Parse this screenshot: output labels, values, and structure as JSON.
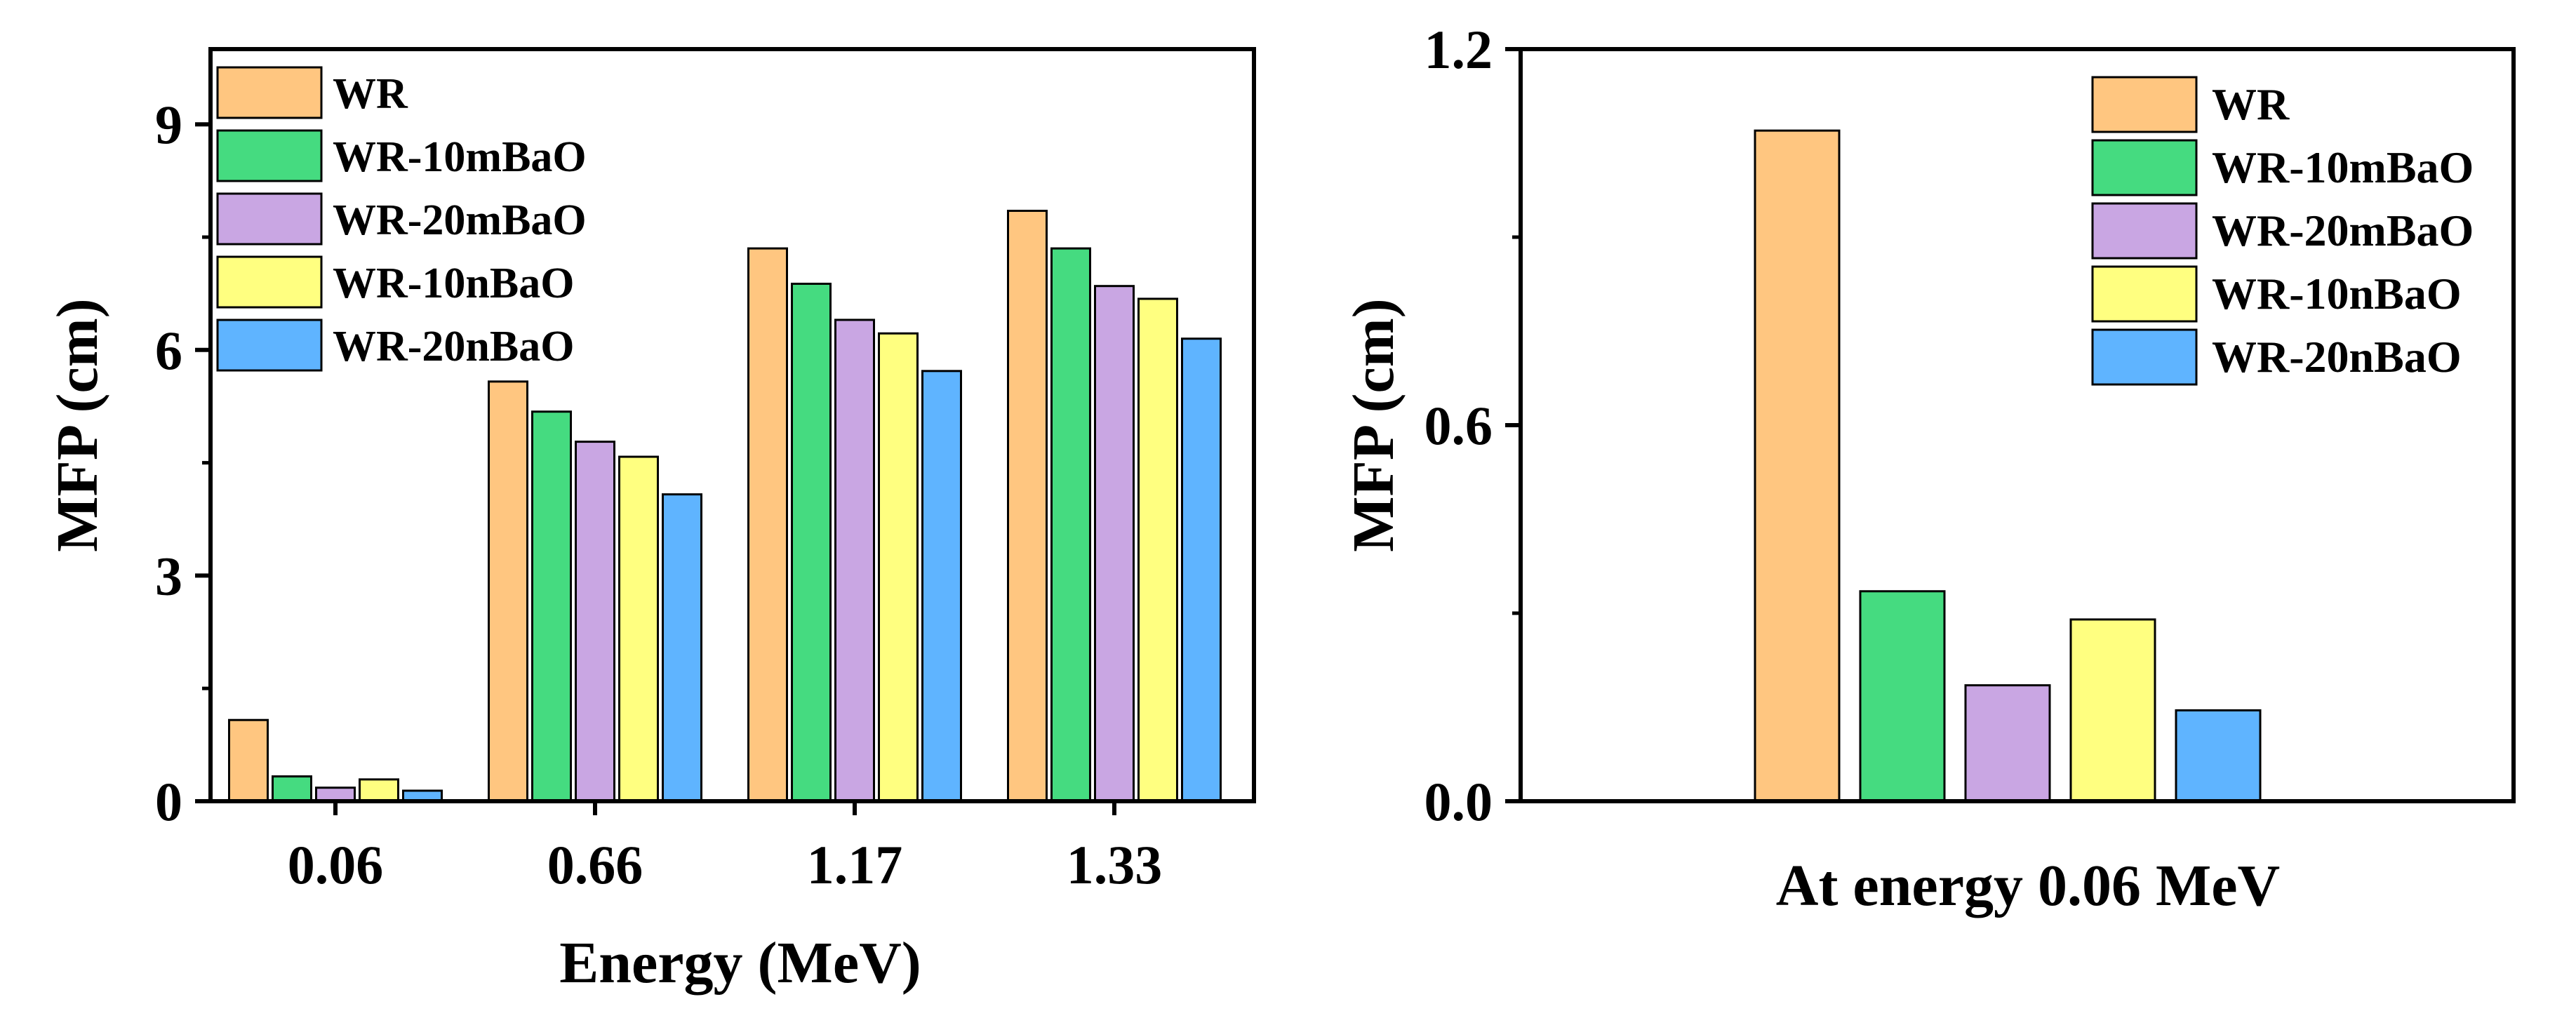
{
  "chart_data": [
    {
      "type": "bar",
      "title": "",
      "xlabel": "Energy (MeV)",
      "ylabel": "MFP (cm)",
      "categories": [
        "0.06",
        "0.66",
        "1.17",
        "1.33"
      ],
      "ylim": [
        0,
        10
      ],
      "yticks": [
        "0",
        "3",
        "6",
        "9"
      ],
      "legend_position": "top-left",
      "series": [
        {
          "name": "WR",
          "color": "#FFC680",
          "values": [
            1.08,
            5.58,
            7.35,
            7.85
          ]
        },
        {
          "name": "WR-10mBaO",
          "color": "#45DB80",
          "values": [
            0.33,
            5.18,
            6.88,
            7.35
          ]
        },
        {
          "name": "WR-20mBaO",
          "color": "#C9A6E3",
          "values": [
            0.18,
            4.78,
            6.4,
            6.85
          ]
        },
        {
          "name": "WR-10nBaO",
          "color": "#FFFF80",
          "values": [
            0.29,
            4.58,
            6.22,
            6.68
          ]
        },
        {
          "name": "WR-20nBaO",
          "color": "#5FB4FF",
          "values": [
            0.14,
            4.08,
            5.72,
            6.15
          ]
        }
      ]
    },
    {
      "type": "bar",
      "title": "",
      "xlabel": "At energy 0.06 MeV",
      "ylabel": "MFP (cm)",
      "categories": [
        "0.06"
      ],
      "ylim": [
        0,
        1.2
      ],
      "yticks": [
        "0.0",
        "0.6",
        "1.2"
      ],
      "legend_position": "top-right",
      "series": [
        {
          "name": "WR",
          "color": "#FFC680",
          "values": [
            1.07
          ]
        },
        {
          "name": "WR-10mBaO",
          "color": "#45DB80",
          "values": [
            0.335
          ]
        },
        {
          "name": "WR-20mBaO",
          "color": "#C9A6E3",
          "values": [
            0.185
          ]
        },
        {
          "name": "WR-10nBaO",
          "color": "#FFFF80",
          "values": [
            0.29
          ]
        },
        {
          "name": "WR-20nBaO",
          "color": "#5FB4FF",
          "values": [
            0.145
          ]
        }
      ]
    }
  ]
}
